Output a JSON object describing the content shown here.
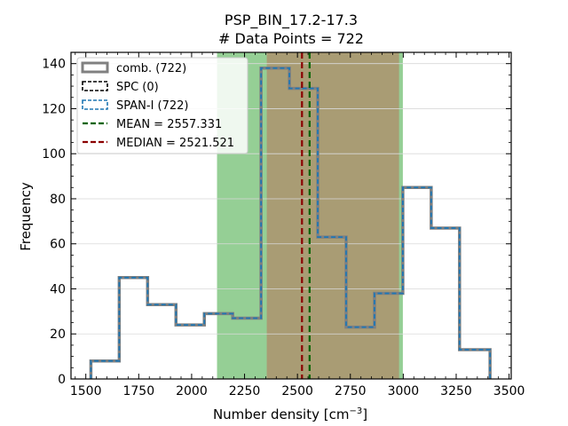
{
  "chart_data": {
    "type": "histogram",
    "title_lines": [
      "PSP_BIN_17.2-17.3",
      "# Data Points = 722"
    ],
    "xlabel": "Number density [cm",
    "xlabel_sup": "−3",
    "xlabel_end": "]",
    "ylabel": "Frequency",
    "xlim": [
      1430,
      3510
    ],
    "ylim": [
      0,
      145
    ],
    "xticks": [
      1500,
      1750,
      2000,
      2250,
      2500,
      2750,
      3000,
      3250,
      3500
    ],
    "yticks": [
      0,
      20,
      40,
      60,
      80,
      100,
      120,
      140
    ],
    "grid": "horizontal",
    "legend_position": "top-left",
    "bin_edges": [
      1524,
      1658,
      1792,
      1926,
      2060,
      2194,
      2328,
      2462,
      2596,
      2730,
      2864,
      2998,
      3132,
      3266,
      3410
    ],
    "series": [
      {
        "name": "comb. (722)",
        "color": "#808080",
        "style": "solid-thick",
        "values": [
          8,
          45,
          33,
          24,
          29,
          27,
          138,
          129,
          63,
          23,
          38,
          85,
          67,
          13
        ]
      },
      {
        "name": "SPC (0)",
        "color": "#000000",
        "style": "dashed",
        "values": []
      },
      {
        "name": "SPAN-I (722)",
        "color": "#1f77b4",
        "style": "dashed",
        "values": [
          8,
          45,
          33,
          24,
          29,
          27,
          138,
          129,
          63,
          23,
          38,
          85,
          67,
          13
        ]
      }
    ],
    "shaded_regions": [
      {
        "x0": 2120,
        "x1": 2998,
        "color": "#2ca02c",
        "opacity": 0.5
      },
      {
        "x0": 2355,
        "x1": 2980,
        "color": "#d62728",
        "opacity": 0.3
      }
    ],
    "vlines": [
      {
        "name": "MEAN = 2557.331",
        "x": 2557.331,
        "color": "#006400"
      },
      {
        "name": "MEDIAN = 2521.521",
        "x": 2521.521,
        "color": "#8b0000"
      }
    ]
  }
}
